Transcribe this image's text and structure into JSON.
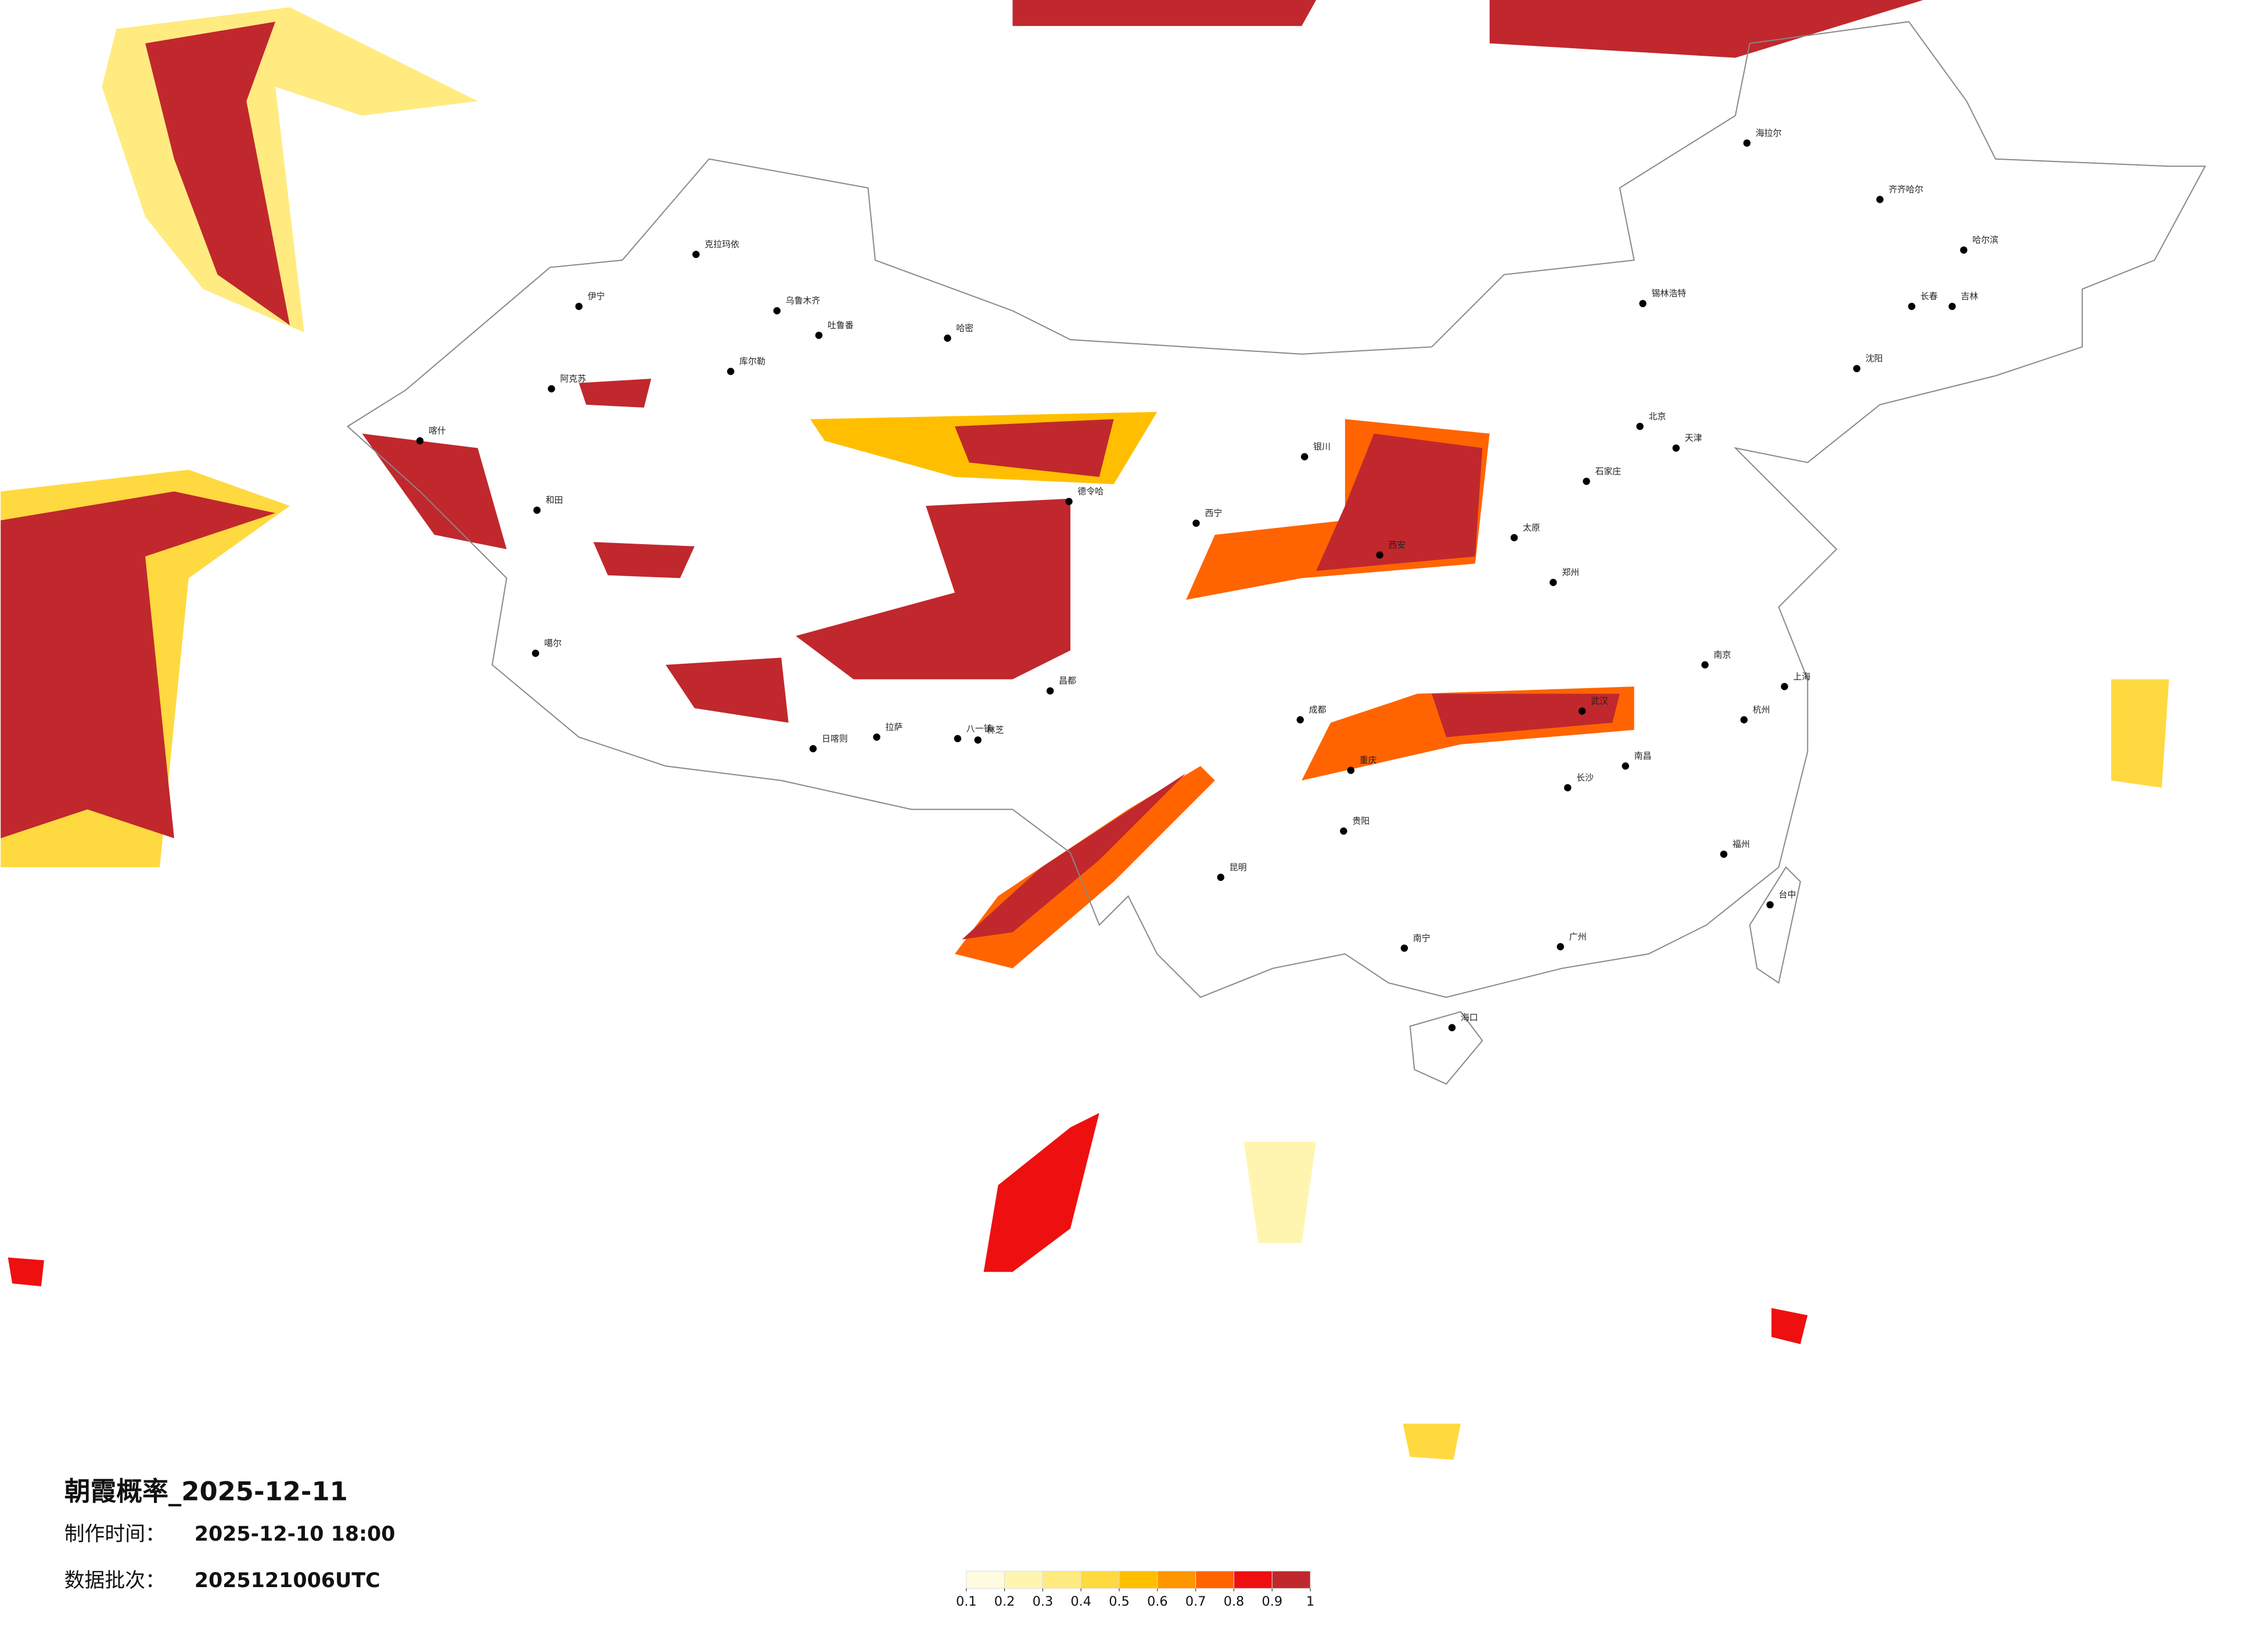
{
  "title": "朝霞概率_2025-12-11",
  "made_label": "制作时间：",
  "made_time": "2025-12-10 18:00",
  "batch_label": "数据批次：",
  "batch": "2025121006UTC",
  "legend": {
    "ticks": [
      0.1,
      0.2,
      0.3,
      0.4,
      0.5,
      0.6,
      0.7,
      0.8,
      0.9,
      1
    ],
    "colors": [
      "#fffbe0",
      "#fff5b0",
      "#ffeb80",
      "#ffd940",
      "#ffbf00",
      "#ff9500",
      "#ff6400",
      "#ee1010",
      "#c0282d"
    ]
  },
  "cities": [
    "伊宁",
    "克拉玛依",
    "乌鲁木齐",
    "吐鲁番",
    "哈密",
    "库尔勒",
    "阿克苏",
    "和田",
    "喀什",
    "噶尔",
    "日喀则",
    "拉萨",
    "八一镇",
    "林芝",
    "昌都",
    "德令哈",
    "西宁",
    "银川",
    "锡林浩特",
    "海拉尔",
    "齐齐哈尔",
    "哈尔滨",
    "长春",
    "吉林",
    "沈阳",
    "北京",
    "天津",
    "石家庄",
    "太原",
    "西安",
    "郑州",
    "武汉",
    "长沙",
    "南昌",
    "杭州",
    "上海",
    "南京",
    "成都",
    "重庆",
    "贵阳",
    "昆明",
    "南宁",
    "广州",
    "福州",
    "台中",
    "海口"
  ]
}
